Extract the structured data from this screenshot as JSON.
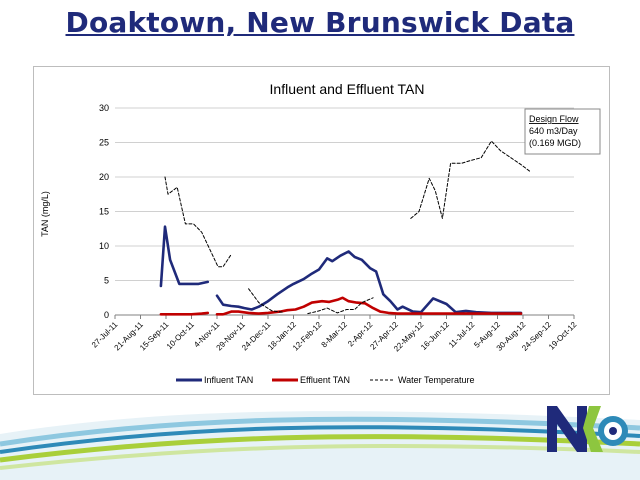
{
  "slide": {
    "title": "Doaktown, New Brunswick Data"
  },
  "chart_data": {
    "type": "line",
    "title": "Influent and Effluent TAN",
    "ylabel": "TAN (mg/L)",
    "xlabel": "",
    "ylim": [
      0,
      30
    ],
    "yticks": [
      0,
      5,
      10,
      15,
      20,
      25,
      30
    ],
    "xlim": [
      "2011-07-27",
      "2012-10-19"
    ],
    "xticks": [
      "27-Jul-11",
      "21-Aug-11",
      "15-Sep-11",
      "10-Oct-11",
      "4-Nov-11",
      "29-Nov-11",
      "24-Dec-11",
      "18-Jan-12",
      "12-Feb-12",
      "8-Mar-12",
      "2-Apr-12",
      "27-Apr-12",
      "22-May-12",
      "16-Jun-12",
      "11-Jul-12",
      "5-Aug-12",
      "30-Aug-12",
      "24-Sep-12",
      "19-Oct-12"
    ],
    "grid": true,
    "legend": "bottom",
    "annotation": {
      "title": "Design Flow",
      "lines": [
        "640 m3/Day",
        "(0.169 MGD)"
      ]
    },
    "series": [
      {
        "name": "Influent TAN",
        "color": "#1f2a7a",
        "style": "solid",
        "segments": [
          [
            [
              "2011-09-10",
              4.2
            ],
            [
              "2011-09-14",
              12.8
            ],
            [
              "2011-09-19",
              8.0
            ],
            [
              "2011-09-28",
              4.5
            ],
            [
              "2011-10-10",
              4.5
            ],
            [
              "2011-10-17",
              4.5
            ],
            [
              "2011-10-26",
              4.8
            ]
          ],
          [
            [
              "2011-11-04",
              2.8
            ],
            [
              "2011-11-10",
              1.5
            ],
            [
              "2011-11-18",
              1.3
            ],
            [
              "2011-11-25",
              1.2
            ],
            [
              "2011-12-01",
              1.0
            ],
            [
              "2011-12-08",
              0.8
            ],
            [
              "2011-12-15",
              1.2
            ],
            [
              "2011-12-24",
              2.0
            ],
            [
              "2012-01-02",
              3.0
            ],
            [
              "2012-01-12",
              4.0
            ],
            [
              "2012-01-18",
              4.5
            ],
            [
              "2012-01-28",
              5.2
            ],
            [
              "2012-02-05",
              6.0
            ],
            [
              "2012-02-12",
              6.6
            ],
            [
              "2012-02-20",
              8.2
            ],
            [
              "2012-02-25",
              7.8
            ],
            [
              "2012-03-04",
              8.6
            ],
            [
              "2012-03-12",
              9.2
            ],
            [
              "2012-03-18",
              8.4
            ],
            [
              "2012-03-25",
              8.0
            ],
            [
              "2012-04-02",
              6.8
            ],
            [
              "2012-04-08",
              6.3
            ],
            [
              "2012-04-15",
              3.0
            ],
            [
              "2012-04-22",
              2.0
            ],
            [
              "2012-04-29",
              0.8
            ],
            [
              "2012-05-04",
              1.2
            ],
            [
              "2012-05-14",
              0.5
            ],
            [
              "2012-05-22",
              0.4
            ],
            [
              "2012-06-03",
              2.4
            ],
            [
              "2012-06-16",
              1.6
            ],
            [
              "2012-06-25",
              0.4
            ],
            [
              "2012-07-05",
              0.6
            ],
            [
              "2012-07-15",
              0.4
            ],
            [
              "2012-07-30",
              0.3
            ],
            [
              "2012-08-15",
              0.3
            ],
            [
              "2012-08-28",
              0.3
            ]
          ]
        ]
      },
      {
        "name": "Effluent TAN",
        "color": "#c00000",
        "style": "solid",
        "segments": [
          [
            [
              "2011-09-10",
              0.1
            ],
            [
              "2011-09-20",
              0.1
            ],
            [
              "2011-10-10",
              0.1
            ],
            [
              "2011-10-20",
              0.2
            ],
            [
              "2011-10-26",
              0.3
            ]
          ],
          [
            [
              "2011-11-04",
              0.1
            ],
            [
              "2011-11-10",
              0.1
            ],
            [
              "2011-11-18",
              0.5
            ],
            [
              "2011-11-25",
              0.5
            ],
            [
              "2011-12-05",
              0.3
            ],
            [
              "2011-12-15",
              0.2
            ],
            [
              "2011-12-24",
              0.3
            ],
            [
              "2012-01-05",
              0.5
            ],
            [
              "2012-01-12",
              0.7
            ],
            [
              "2012-01-20",
              0.8
            ],
            [
              "2012-01-28",
              1.2
            ],
            [
              "2012-02-05",
              1.8
            ],
            [
              "2012-02-15",
              2.0
            ],
            [
              "2012-02-22",
              1.9
            ],
            [
              "2012-03-01",
              2.2
            ],
            [
              "2012-03-06",
              2.5
            ],
            [
              "2012-03-12",
              2.0
            ],
            [
              "2012-03-20",
              1.8
            ],
            [
              "2012-03-28",
              1.7
            ],
            [
              "2012-04-05",
              1.0
            ],
            [
              "2012-04-12",
              0.5
            ],
            [
              "2012-04-20",
              0.3
            ],
            [
              "2012-04-29",
              0.2
            ],
            [
              "2012-05-14",
              0.2
            ],
            [
              "2012-06-03",
              0.2
            ],
            [
              "2012-06-16",
              0.2
            ],
            [
              "2012-07-05",
              0.2
            ],
            [
              "2012-07-30",
              0.2
            ],
            [
              "2012-08-15",
              0.2
            ],
            [
              "2012-08-28",
              0.2
            ]
          ]
        ]
      },
      {
        "name": "Water Temperature",
        "color": "#000000",
        "style": "dashed",
        "segments": [
          [
            [
              "2011-09-14",
              20.0
            ],
            [
              "2011-09-17",
              17.5
            ],
            [
              "2011-09-26",
              18.5
            ],
            [
              "2011-10-04",
              13.2
            ],
            [
              "2011-10-12",
              13.2
            ],
            [
              "2011-10-20",
              12.0
            ],
            [
              "2011-11-05",
              7.0
            ],
            [
              "2011-11-10",
              7.0
            ],
            [
              "2011-11-18",
              8.8
            ]
          ],
          [
            [
              "2011-12-05",
              3.8
            ],
            [
              "2011-12-15",
              1.8
            ],
            [
              "2011-12-28",
              0.6
            ],
            [
              "2012-01-08",
              0.4
            ]
          ],
          [
            [
              "2012-02-01",
              0.2
            ],
            [
              "2012-02-12",
              0.6
            ],
            [
              "2012-02-20",
              1.0
            ],
            [
              "2012-03-01",
              0.3
            ],
            [
              "2012-03-10",
              0.8
            ],
            [
              "2012-03-18",
              0.8
            ],
            [
              "2012-03-25",
              1.8
            ],
            [
              "2012-04-05",
              2.5
            ]
          ],
          [
            [
              "2012-05-12",
              14.0
            ],
            [
              "2012-05-20",
              15.0
            ],
            [
              "2012-05-30",
              19.8
            ],
            [
              "2012-06-05",
              18.0
            ],
            [
              "2012-06-12",
              14.0
            ],
            [
              "2012-06-20",
              22.0
            ],
            [
              "2012-07-01",
              22.0
            ],
            [
              "2012-07-10",
              22.4
            ],
            [
              "2012-07-20",
              22.8
            ],
            [
              "2012-07-30",
              25.2
            ],
            [
              "2012-08-08",
              23.8
            ],
            [
              "2012-08-18",
              22.8
            ],
            [
              "2012-08-28",
              21.8
            ],
            [
              "2012-09-06",
              20.8
            ]
          ]
        ]
      }
    ]
  }
}
